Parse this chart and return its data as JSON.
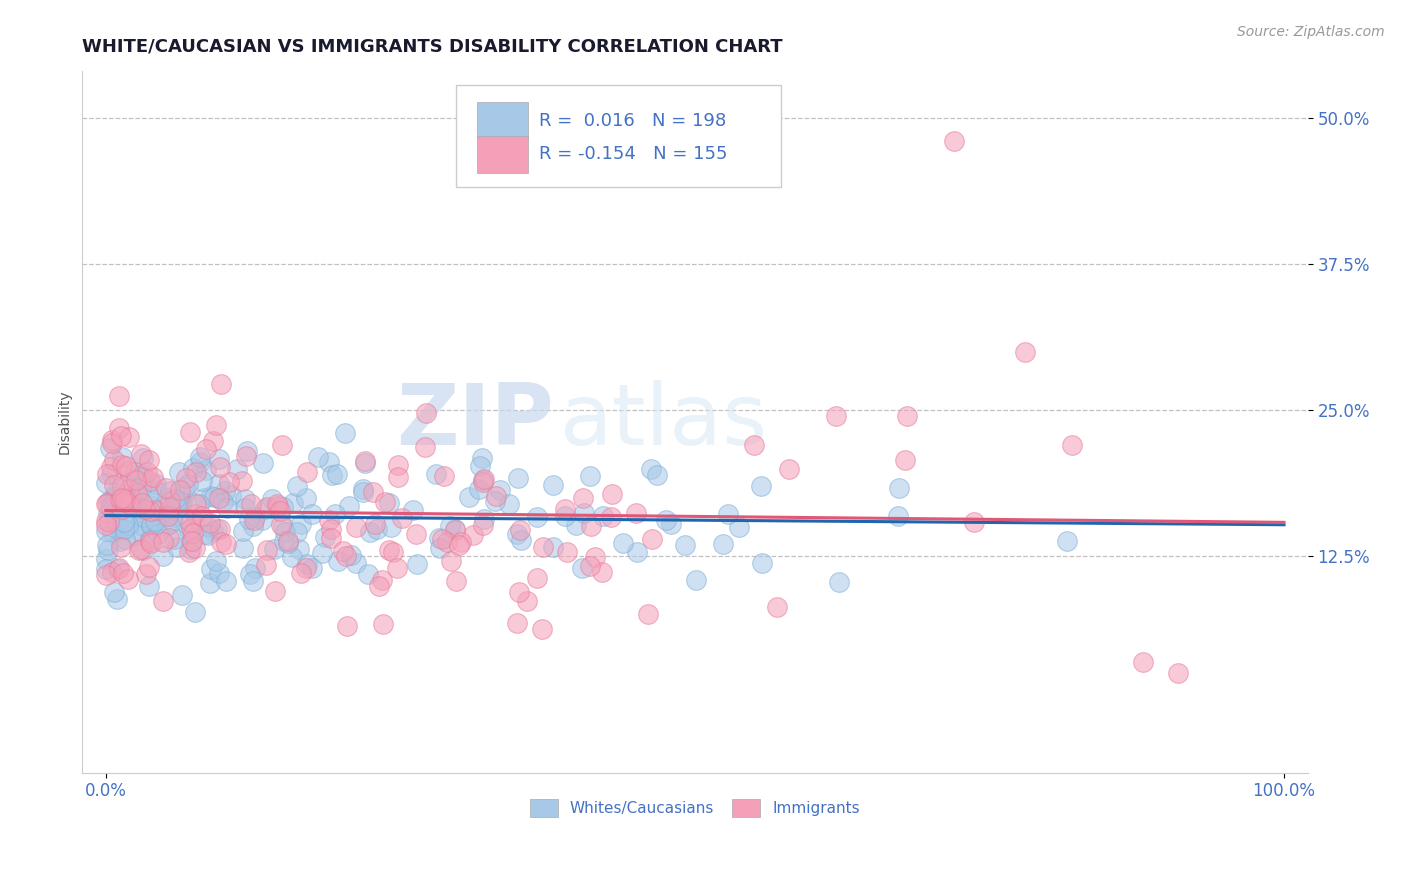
{
  "title": "WHITE/CAUCASIAN VS IMMIGRANTS DISABILITY CORRELATION CHART",
  "source_text": "Source: ZipAtlas.com",
  "ylabel": "Disability",
  "blue_label": "Whites/Caucasians",
  "pink_label": "Immigrants",
  "blue_R": 0.016,
  "blue_N": 198,
  "pink_R": -0.154,
  "pink_N": 155,
  "xlim": [
    -0.02,
    1.02
  ],
  "ylim": [
    -0.06,
    0.54
  ],
  "yticks": [
    0.125,
    0.25,
    0.375,
    0.5
  ],
  "ytick_labels": [
    "12.5%",
    "25.0%",
    "37.5%",
    "50.0%"
  ],
  "xticks": [
    0.0,
    1.0
  ],
  "xtick_labels": [
    "0.0%",
    "100.0%"
  ],
  "blue_scatter_color": "#a8c8e8",
  "blue_scatter_edge": "#7aafd4",
  "blue_line_color": "#2166ac",
  "pink_scatter_color": "#f4a0b8",
  "pink_scatter_edge": "#e87898",
  "pink_line_color": "#e05878",
  "grid_color": "#bbbbbb",
  "title_color": "#1a1a2e",
  "axis_tick_color": "#4472c4",
  "watermark_zip": "ZIP",
  "watermark_atlas": "atlas",
  "background_color": "#ffffff",
  "legend_text_color": "#4472c4",
  "legend_R_black": "#333333",
  "title_fontsize": 13,
  "source_fontsize": 10,
  "legend_fontsize": 13,
  "ylabel_fontsize": 10,
  "tick_fontsize": 12,
  "scatter_size": 200,
  "scatter_alpha": 0.55,
  "blue_trend_intercept": 0.157,
  "blue_trend_slope": 0.003,
  "pink_trend_intercept": 0.163,
  "pink_trend_slope": -0.038
}
